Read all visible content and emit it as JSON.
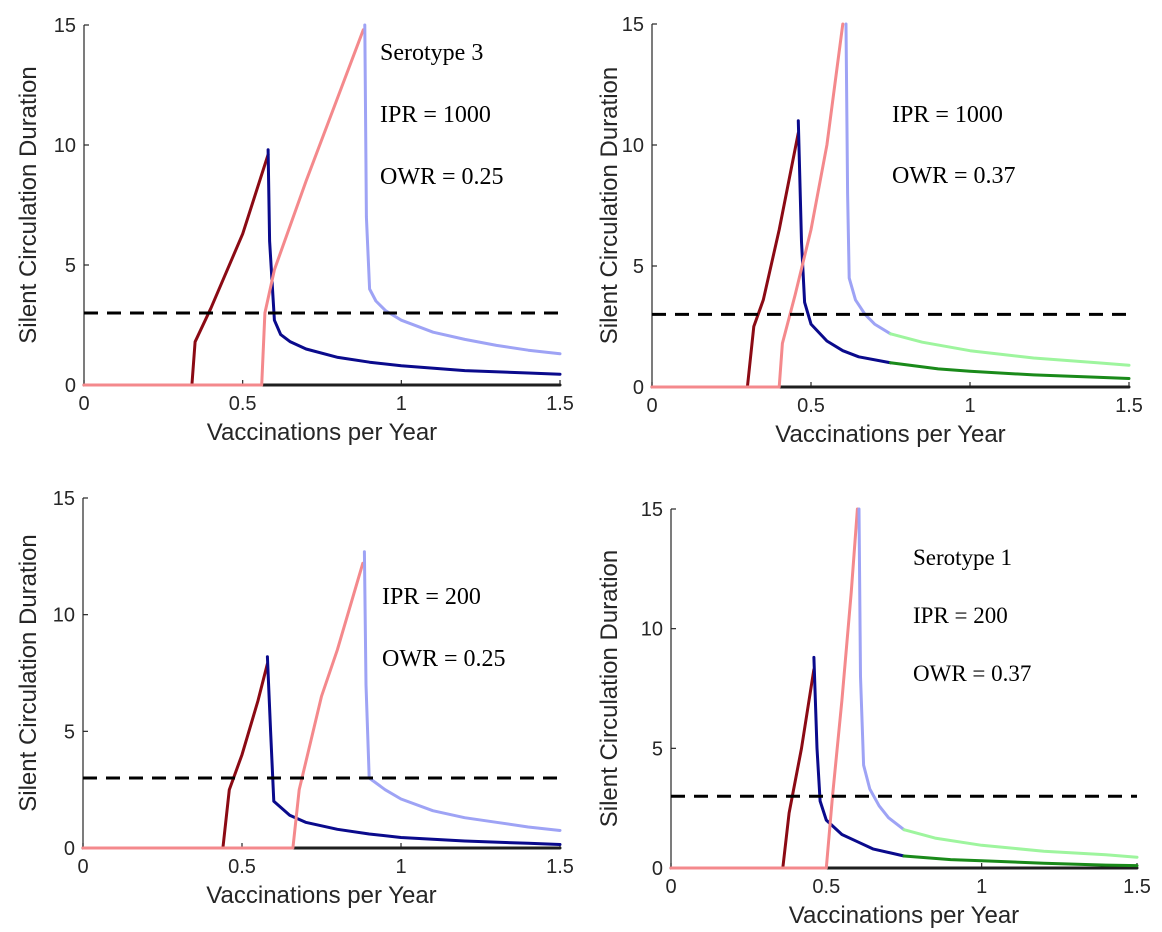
{
  "chart_data": [
    {
      "type": "line",
      "xlabel": "Vaccinations per Year",
      "ylabel": "Silent Circulation Duration",
      "xlim": [
        0,
        1.5
      ],
      "ylim": [
        0,
        15
      ],
      "xticks": [
        0,
        0.5,
        1,
        1.5
      ],
      "xtick_labels": [
        "0",
        "0.5",
        "1",
        "1.5"
      ],
      "yticks": [
        0,
        5,
        10,
        15
      ],
      "ytick_labels": [
        "0",
        "5",
        "10",
        "15"
      ],
      "annotations": [
        "Serotype 3",
        "IPR = 1000",
        "OWR = 0.25"
      ],
      "threshold": 3,
      "series": [
        {
          "color": "#1f1f1f",
          "x": [
            0,
            1.5
          ],
          "y": [
            0,
            0
          ]
        },
        {
          "color": "#8b0a14",
          "x": [
            0,
            0.34,
            0.35,
            0.4,
            0.5,
            0.58
          ],
          "y": [
            0,
            0,
            1.8,
            3.2,
            6.3,
            9.6
          ]
        },
        {
          "color": "#0a0a8c",
          "x": [
            0.58,
            0.585,
            0.6,
            0.62,
            0.65,
            0.7,
            0.8,
            0.9,
            1.0,
            1.2,
            1.4,
            1.5
          ],
          "y": [
            9.8,
            6.0,
            2.7,
            2.1,
            1.8,
            1.5,
            1.15,
            0.95,
            0.8,
            0.6,
            0.5,
            0.45
          ]
        },
        {
          "color": "#f4898c",
          "x": [
            0,
            0.56,
            0.57,
            0.6,
            0.7,
            0.8,
            0.88
          ],
          "y": [
            0,
            0,
            3.0,
            4.8,
            8.5,
            12.0,
            14.8
          ]
        },
        {
          "color": "#9ea3f5",
          "x": [
            0.885,
            0.89,
            0.9,
            0.92,
            0.95,
            1.0,
            1.1,
            1.2,
            1.3,
            1.4,
            1.5
          ],
          "y": [
            15,
            7.0,
            4.0,
            3.5,
            3.1,
            2.7,
            2.2,
            1.9,
            1.65,
            1.45,
            1.3
          ]
        }
      ]
    },
    {
      "type": "line",
      "xlabel": "Vaccinations per Year",
      "ylabel": "Silent Circulation Duration",
      "xlim": [
        0,
        1.5
      ],
      "ylim": [
        0,
        15
      ],
      "xticks": [
        0,
        0.5,
        1,
        1.5
      ],
      "xtick_labels": [
        "0",
        "0.5",
        "1",
        "1.5"
      ],
      "yticks": [
        0,
        5,
        10,
        15
      ],
      "ytick_labels": [
        "0",
        "5",
        "10",
        "15"
      ],
      "annotations": [
        "IPR = 1000",
        "OWR = 0.37"
      ],
      "threshold": 3,
      "series": [
        {
          "color": "#1f1f1f",
          "x": [
            0,
            1.5
          ],
          "y": [
            0,
            0
          ]
        },
        {
          "color": "#8b0a14",
          "x": [
            0,
            0.3,
            0.32,
            0.35,
            0.4,
            0.46
          ],
          "y": [
            0,
            0,
            2.5,
            3.6,
            6.5,
            10.5
          ]
        },
        {
          "color": "#0a0a8c",
          "x": [
            0.46,
            0.47,
            0.48,
            0.5,
            0.55,
            0.6,
            0.65,
            0.75
          ],
          "y": [
            11.0,
            6.0,
            3.5,
            2.6,
            1.9,
            1.5,
            1.25,
            1.0
          ]
        },
        {
          "color": "#1a8a1a",
          "x": [
            0.75,
            0.9,
            1.0,
            1.2,
            1.4,
            1.5
          ],
          "y": [
            1.0,
            0.75,
            0.65,
            0.5,
            0.4,
            0.35
          ]
        },
        {
          "color": "#f4898c",
          "x": [
            0,
            0.4,
            0.41,
            0.45,
            0.5,
            0.55,
            0.6
          ],
          "y": [
            0,
            0,
            1.8,
            3.8,
            6.5,
            10.0,
            15.0
          ]
        },
        {
          "color": "#9ea3f5",
          "x": [
            0.61,
            0.615,
            0.62,
            0.64,
            0.67,
            0.7,
            0.75
          ],
          "y": [
            15,
            8.0,
            4.5,
            3.6,
            3.0,
            2.6,
            2.2
          ]
        },
        {
          "color": "#9ef59e",
          "x": [
            0.75,
            0.85,
            1.0,
            1.2,
            1.4,
            1.5
          ],
          "y": [
            2.2,
            1.85,
            1.5,
            1.2,
            1.0,
            0.9
          ]
        }
      ]
    },
    {
      "type": "line",
      "xlabel": "Vaccinations per Year",
      "ylabel": "Silent Circulation Duration",
      "xlim": [
        0,
        1.5
      ],
      "ylim": [
        0,
        15
      ],
      "xticks": [
        0,
        0.5,
        1,
        1.5
      ],
      "xtick_labels": [
        "0",
        "0.5",
        "1",
        "1.5"
      ],
      "yticks": [
        0,
        5,
        10,
        15
      ],
      "ytick_labels": [
        "0",
        "5",
        "10",
        "15"
      ],
      "annotations": [
        "IPR = 200",
        "OWR = 0.25"
      ],
      "threshold": 3,
      "series": [
        {
          "color": "#1f1f1f",
          "x": [
            0,
            1.5
          ],
          "y": [
            0,
            0
          ]
        },
        {
          "color": "#8b0a14",
          "x": [
            0,
            0.44,
            0.46,
            0.5,
            0.55,
            0.58
          ],
          "y": [
            0,
            0,
            2.5,
            4.0,
            6.3,
            7.9
          ]
        },
        {
          "color": "#0a0a8c",
          "x": [
            0.58,
            0.59,
            0.6,
            0.65,
            0.7,
            0.8,
            0.9,
            1.0,
            1.2,
            1.4,
            1.5
          ],
          "y": [
            8.2,
            5.0,
            2.0,
            1.4,
            1.1,
            0.8,
            0.6,
            0.45,
            0.3,
            0.2,
            0.15
          ]
        },
        {
          "color": "#f4898c",
          "x": [
            0,
            0.66,
            0.68,
            0.75,
            0.8,
            0.88
          ],
          "y": [
            0,
            0,
            2.5,
            6.5,
            8.5,
            12.2
          ]
        },
        {
          "color": "#9ea3f5",
          "x": [
            0.885,
            0.89,
            0.9,
            0.95,
            1.0,
            1.1,
            1.2,
            1.3,
            1.4,
            1.5
          ],
          "y": [
            12.7,
            7.0,
            3.0,
            2.5,
            2.1,
            1.6,
            1.3,
            1.1,
            0.9,
            0.75
          ]
        }
      ]
    },
    {
      "type": "line",
      "xlabel": "Vaccinations per Year",
      "ylabel": "Silent Circulation Duration",
      "xlim": [
        0,
        1.5
      ],
      "ylim": [
        0,
        15
      ],
      "xticks": [
        0,
        0.5,
        1,
        1.5
      ],
      "xtick_labels": [
        "0",
        "0.5",
        "1",
        "1.5"
      ],
      "yticks": [
        0,
        5,
        10,
        15
      ],
      "ytick_labels": [
        "0",
        "5",
        "10",
        "15"
      ],
      "annotations": [
        "Serotype 1",
        "IPR = 200",
        "OWR = 0.37"
      ],
      "threshold": 3,
      "series": [
        {
          "color": "#1f1f1f",
          "x": [
            0,
            1.5
          ],
          "y": [
            0,
            0
          ]
        },
        {
          "color": "#8b0a14",
          "x": [
            0,
            0.36,
            0.38,
            0.42,
            0.46
          ],
          "y": [
            0,
            0,
            2.3,
            5.0,
            8.3
          ]
        },
        {
          "color": "#0a0a8c",
          "x": [
            0.46,
            0.47,
            0.48,
            0.5,
            0.55,
            0.6,
            0.65,
            0.75
          ],
          "y": [
            8.8,
            5.0,
            2.8,
            2.0,
            1.4,
            1.1,
            0.8,
            0.5
          ]
        },
        {
          "color": "#1a8a1a",
          "x": [
            0.75,
            0.9,
            1.0,
            1.2,
            1.4,
            1.5
          ],
          "y": [
            0.5,
            0.35,
            0.3,
            0.2,
            0.12,
            0.1
          ]
        },
        {
          "color": "#f4898c",
          "x": [
            0,
            0.5,
            0.52,
            0.55,
            0.58,
            0.6
          ],
          "y": [
            0,
            0,
            3.0,
            7.0,
            11.5,
            15.0
          ]
        },
        {
          "color": "#9ea3f5",
          "x": [
            0.605,
            0.61,
            0.62,
            0.64,
            0.67,
            0.7,
            0.75
          ],
          "y": [
            15,
            8.0,
            4.3,
            3.3,
            2.6,
            2.1,
            1.6
          ]
        },
        {
          "color": "#9ef59e",
          "x": [
            0.75,
            0.85,
            1.0,
            1.2,
            1.4,
            1.5
          ],
          "y": [
            1.6,
            1.25,
            0.95,
            0.7,
            0.55,
            0.45
          ]
        }
      ]
    }
  ]
}
